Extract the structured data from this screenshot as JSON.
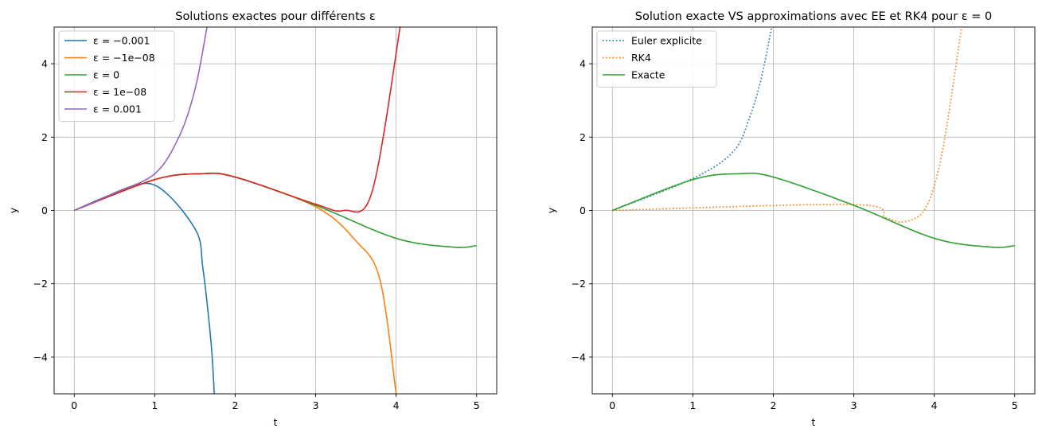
{
  "chart_data": [
    {
      "type": "line",
      "title": "Solutions exactes pour différents ε",
      "xlabel": "t",
      "ylabel": "y",
      "xlim": [
        -0.25,
        5.25
      ],
      "ylim": [
        -5,
        5
      ],
      "xticks": [
        "0",
        "1",
        "2",
        "3",
        "4",
        "5"
      ],
      "yticks": [
        "−4",
        "−2",
        "0",
        "2",
        "4"
      ],
      "grid": true,
      "legend_position": "upper-left",
      "series": [
        {
          "name": "ε = −0.001",
          "color": "#1f77b4",
          "style": "solid",
          "eps": -0.001,
          "x": [
            0,
            0.5,
            1.0,
            1.5,
            1.6,
            1.7,
            1.74
          ],
          "y": [
            0,
            0.46,
            0.69,
            -0.5,
            -1.6,
            -3.6,
            -5.0
          ]
        },
        {
          "name": "ε = −1e−08",
          "color": "#ff7f0e",
          "style": "solid",
          "eps": -1e-08,
          "x": [
            0,
            1,
            1.57,
            2,
            3,
            3.5,
            3.8,
            4.0
          ],
          "y": [
            0,
            0.84,
            1.0,
            0.91,
            0.1,
            -0.83,
            -1.9,
            -5.0
          ]
        },
        {
          "name": "ε = 0",
          "color": "#2ca02c",
          "style": "solid",
          "eps": 0,
          "x": [
            0,
            1,
            1.57,
            2,
            3,
            4,
            4.71,
            5
          ],
          "y": [
            0,
            0.84,
            1.0,
            0.91,
            0.14,
            -0.76,
            -1.0,
            -0.96
          ]
        },
        {
          "name": "ε = 1e−08",
          "color": "#d62728",
          "style": "solid",
          "eps": 1e-08,
          "x": [
            0,
            1,
            1.57,
            2,
            3,
            3.35,
            3.7,
            4.05
          ],
          "y": [
            0,
            0.84,
            1.0,
            0.91,
            0.17,
            0.0,
            0.5,
            5.0
          ]
        },
        {
          "name": "ε = 0.001",
          "color": "#9467bd",
          "style": "solid",
          "eps": 0.001,
          "x": [
            0,
            0.5,
            1.0,
            1.3,
            1.5,
            1.65
          ],
          "y": [
            0,
            0.48,
            1.0,
            2.0,
            3.3,
            5.0
          ]
        }
      ]
    },
    {
      "type": "line",
      "title": "Solution exacte VS approximations avec EE et RK4 pour ε = 0",
      "xlabel": "t",
      "ylabel": "y",
      "xlim": [
        -0.25,
        5.25
      ],
      "ylim": [
        -5,
        5
      ],
      "xticks": [
        "0",
        "1",
        "2",
        "3",
        "4",
        "5"
      ],
      "yticks": [
        "−4",
        "−2",
        "0",
        "2",
        "4"
      ],
      "grid": true,
      "legend_position": "upper-left",
      "series": [
        {
          "name": "Euler explicite",
          "color": "#1f77b4",
          "style": "dotted",
          "x": [
            0,
            1,
            1.5,
            1.7,
            1.85,
            1.98
          ],
          "y": [
            0,
            0.87,
            1.6,
            2.5,
            3.6,
            5.0
          ]
        },
        {
          "name": "RK4",
          "color": "#ff7f0e",
          "style": "dotted",
          "x": [
            0,
            3,
            3.4,
            3.65,
            3.9,
            4.1,
            4.34
          ],
          "y": [
            0,
            0.16,
            -0.2,
            -0.3,
            0.1,
            1.6,
            5.0
          ]
        },
        {
          "name": "Exacte",
          "color": "#2ca02c",
          "style": "solid",
          "x": [
            0,
            1,
            1.57,
            2,
            3,
            4,
            4.71,
            5
          ],
          "y": [
            0,
            0.84,
            1.0,
            0.91,
            0.14,
            -0.76,
            -1.0,
            -0.96
          ]
        }
      ]
    }
  ]
}
